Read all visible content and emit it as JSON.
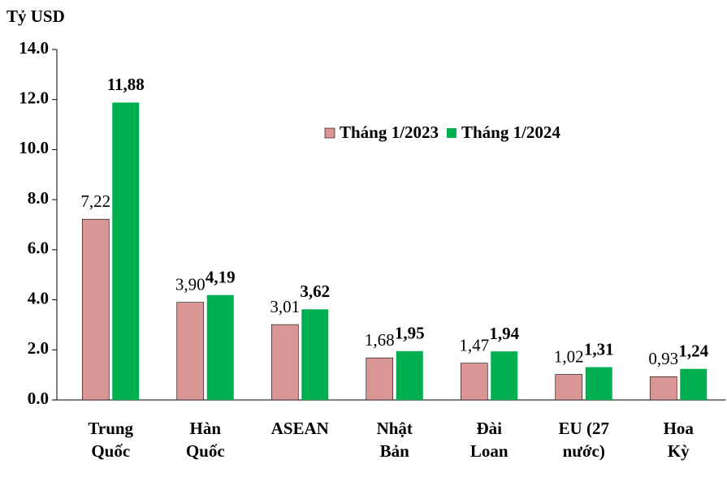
{
  "chart_data": {
    "type": "bar",
    "y_axis_label": "Tỷ USD",
    "categories": [
      [
        "Trung",
        "Quốc"
      ],
      [
        "Hàn",
        "Quốc"
      ],
      [
        "ASEAN"
      ],
      [
        "Nhật",
        "Bản"
      ],
      [
        "Đài",
        "Loan"
      ],
      [
        "EU (27",
        "nước)"
      ],
      [
        "Hoa",
        "Kỳ"
      ]
    ],
    "series": [
      {
        "name": "Tháng 1/2023",
        "color": "#d99694",
        "values": [
          7.22,
          3.9,
          3.01,
          1.68,
          1.47,
          1.02,
          0.93
        ],
        "value_labels": [
          "7,22",
          "3,90",
          "3,01",
          "1,68",
          "1,47",
          "1,02",
          "0,93"
        ]
      },
      {
        "name": "Tháng 1/2024",
        "color": "#00b050",
        "values": [
          11.88,
          4.19,
          3.62,
          1.95,
          1.94,
          1.31,
          1.24
        ],
        "value_labels": [
          "11,88",
          "4,19",
          "3,62",
          "1,95",
          "1,94",
          "1,31",
          "1,24"
        ]
      }
    ],
    "ylim": [
      0,
      14
    ],
    "yticks": [
      {
        "value": 0,
        "label": "0.0"
      },
      {
        "value": 2,
        "label": "2.0"
      },
      {
        "value": 4,
        "label": "4.0"
      },
      {
        "value": 6,
        "label": "6.0"
      },
      {
        "value": 8,
        "label": "8.0"
      },
      {
        "value": 10,
        "label": "10.0"
      },
      {
        "value": 12,
        "label": "12.0"
      },
      {
        "value": 14,
        "label": "14.0"
      }
    ]
  }
}
